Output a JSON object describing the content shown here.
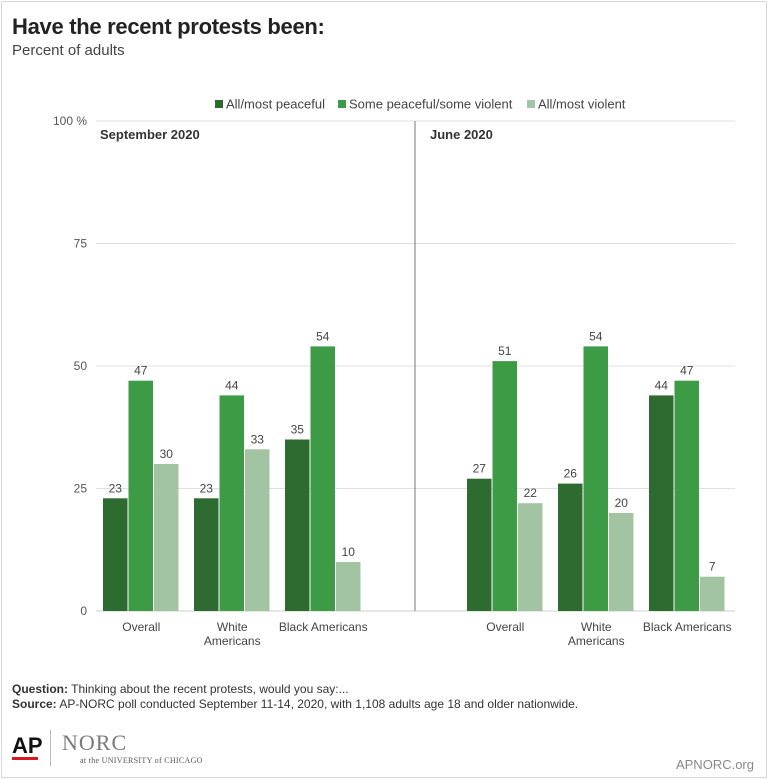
{
  "header": {
    "title": "Have the recent protests been:",
    "subtitle": "Percent of adults"
  },
  "chart_data": {
    "type": "bar",
    "ylim": [
      0,
      100
    ],
    "yticks": [
      "0",
      "25",
      "50",
      "75",
      "100"
    ],
    "y_top_label": "100 %",
    "grid": true,
    "legend_position": "top",
    "series": [
      {
        "name": "All/most peaceful",
        "color": "#2d6b30"
      },
      {
        "name": "Some peaceful/some violent",
        "color": "#3d9a45"
      },
      {
        "name": "All/most violent",
        "color": "#a3c4a3"
      }
    ],
    "panels": [
      {
        "title": "September 2020",
        "categories": [
          "Overall",
          "White Americans",
          "Black Americans"
        ],
        "category_lines": [
          [
            "Overall"
          ],
          [
            "White",
            "Americans"
          ],
          [
            "Black Americans"
          ]
        ],
        "values": [
          [
            23,
            47,
            30
          ],
          [
            23,
            44,
            33
          ],
          [
            35,
            54,
            10
          ]
        ]
      },
      {
        "title": "June 2020",
        "categories": [
          "Overall",
          "White Americans",
          "Black Americans"
        ],
        "category_lines": [
          [
            "Overall"
          ],
          [
            "White",
            "Americans"
          ],
          [
            "Black Americans"
          ]
        ],
        "values": [
          [
            27,
            51,
            22
          ],
          [
            26,
            54,
            20
          ],
          [
            44,
            47,
            7
          ]
        ]
      }
    ]
  },
  "footer": {
    "question_label": "Question:",
    "question_text": "Thinking about the recent protests, would you say:...",
    "source_label": "Source:",
    "source_text": "AP-NORC poll conducted September 11-14, 2020, with 1,108 adults age 18 and older nationwide.",
    "logo_ap": "AP",
    "logo_norc": "NORC",
    "logo_uchicago": "at the UNIVERSITY of CHICAGO",
    "site": "APNORC.org"
  }
}
